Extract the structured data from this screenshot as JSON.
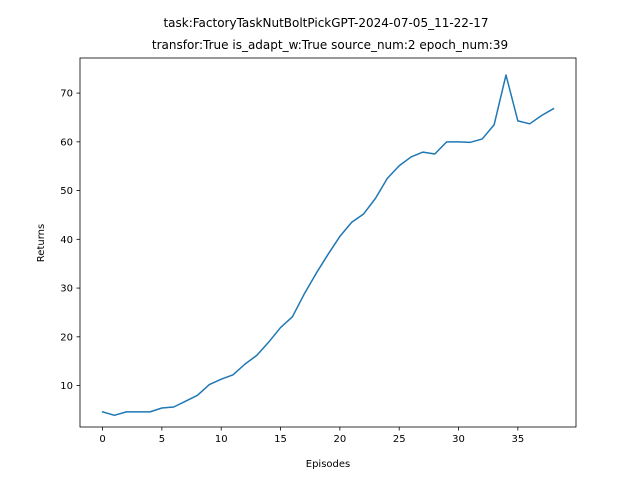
{
  "chart_data": {
    "type": "line",
    "title_line1": "task:FactoryTaskNutBoltPickGPT-2024-07-05_11-22-17",
    "title_line2": "transfor:True  is_adapt_w:True  source_num:2   epoch_num:39",
    "xlabel": "Episodes",
    "ylabel": "Returns",
    "xlim": [
      -1.9,
      39.9
    ],
    "ylim": [
      1.5,
      77.2
    ],
    "xticks": [
      0,
      5,
      10,
      15,
      20,
      25,
      30,
      35
    ],
    "yticks": [
      10,
      20,
      30,
      40,
      50,
      60,
      70
    ],
    "grid": false,
    "line_color": "#1f77b4",
    "series": [
      {
        "x": [
          0,
          1,
          2,
          3,
          4,
          5,
          6,
          7,
          8,
          9,
          10,
          11,
          12,
          13,
          14,
          15,
          16,
          17,
          18,
          19,
          20,
          21,
          22,
          23,
          24,
          25,
          26,
          27,
          28,
          29,
          30,
          31,
          32,
          33,
          34,
          35,
          36,
          37,
          38
        ],
        "values": [
          4.6,
          3.9,
          4.6,
          4.6,
          4.6,
          5.4,
          5.6,
          6.8,
          8.0,
          10.2,
          11.3,
          12.2,
          14.4,
          16.2,
          18.9,
          21.9,
          24.1,
          28.8,
          33.0,
          36.9,
          40.6,
          43.5,
          45.2,
          48.4,
          52.5,
          55.1,
          56.9,
          57.9,
          57.5,
          60.0,
          60.0,
          59.9,
          60.6,
          63.5,
          73.7,
          64.3,
          63.7,
          65.4,
          66.8
        ]
      }
    ]
  }
}
